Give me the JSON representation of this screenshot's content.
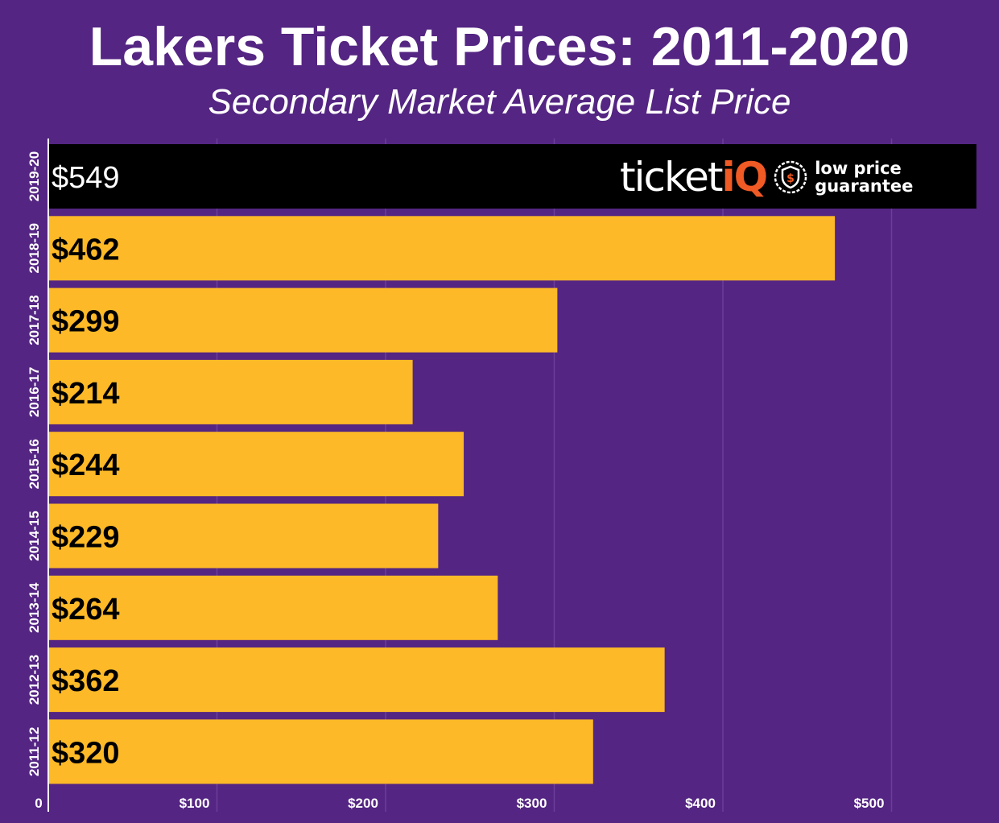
{
  "chart_data": {
    "type": "bar",
    "orientation": "horizontal",
    "title": "Lakers Ticket Prices: 2011-2020",
    "subtitle": "Secondary Market Average List Price",
    "categories": [
      "2019-20",
      "2018-19",
      "2017-18",
      "2016-17",
      "2015-16",
      "2014-15",
      "2013-14",
      "2012-13",
      "2011-12"
    ],
    "values": [
      549,
      462,
      299,
      214,
      244,
      229,
      264,
      362,
      320
    ],
    "data_labels": [
      "$549",
      "$462",
      "$299",
      "$214",
      "$244",
      "$229",
      "$264",
      "$362",
      "$320"
    ],
    "xlim": [
      0,
      550
    ],
    "x_ticks": [
      0,
      100,
      200,
      300,
      400,
      500
    ],
    "x_tick_labels": [
      "0",
      "$100",
      "$200",
      "$300",
      "$400",
      "$500"
    ],
    "grid": true,
    "colors": {
      "background": "#542582",
      "bar": "#fdb927",
      "highlight_bar": "#000000",
      "label": "#000000",
      "highlight_label": "#ffffff",
      "grid": "#6b3f99"
    }
  },
  "logo": {
    "word_main": "ticket",
    "word_accent": "iQ",
    "tagline_line1": "low price",
    "tagline_line2": "guarantee",
    "icon": "shield-dollar-icon"
  }
}
